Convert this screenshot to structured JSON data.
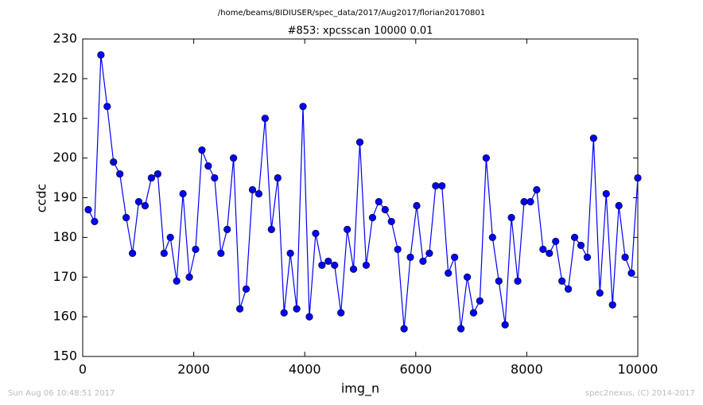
{
  "chart_data": {
    "type": "line",
    "suptitle": "/home/beams/8IDIUSER/spec_data/2017/Aug2017/florian20170801",
    "title": "#853: xpcsscan 10000 0.01",
    "xlabel": "img_n",
    "ylabel": "ccdc",
    "footer_left": "Sun Aug 06 10:48:51 2017",
    "footer_right": "spec2nexus, (C) 2014-2017",
    "xlim": [
      0,
      10000
    ],
    "xticks": [
      0,
      2000,
      4000,
      6000,
      8000,
      10000
    ],
    "ylim": [
      150,
      230
    ],
    "yticks": [
      150,
      160,
      170,
      180,
      190,
      200,
      210,
      220,
      230
    ],
    "x": [
      100,
      214,
      328,
      441,
      555,
      669,
      783,
      897,
      1010,
      1124,
      1238,
      1352,
      1466,
      1579,
      1693,
      1807,
      1921,
      2034,
      2148,
      2262,
      2376,
      2490,
      2603,
      2717,
      2831,
      2945,
      3059,
      3172,
      3286,
      3400,
      3514,
      3628,
      3741,
      3855,
      3969,
      4083,
      4197,
      4310,
      4424,
      4538,
      4652,
      4766,
      4879,
      4993,
      5107,
      5221,
      5334,
      5448,
      5562,
      5676,
      5790,
      5903,
      6017,
      6131,
      6245,
      6359,
      6472,
      6586,
      6700,
      6814,
      6928,
      7041,
      7155,
      7269,
      7383,
      7497,
      7610,
      7724,
      7838,
      7952,
      8066,
      8179,
      8293,
      8407,
      8521,
      8634,
      8748,
      8862,
      8976,
      9090,
      9203,
      9317,
      9431,
      9545,
      9659,
      9772,
      9886,
      10000
    ],
    "series": [
      {
        "color": "#0000ff",
        "values": [
          187,
          184,
          226,
          213,
          199,
          196,
          185,
          176,
          189,
          188,
          195,
          196,
          176,
          180,
          169,
          191,
          170,
          177,
          202,
          198,
          195,
          176,
          182,
          200,
          162,
          167,
          192,
          191,
          210,
          182,
          195,
          161,
          176,
          162,
          213,
          160,
          181,
          173,
          174,
          173,
          161,
          182,
          172,
          204,
          173,
          185,
          189,
          187,
          184,
          177,
          157,
          175,
          188,
          174,
          176,
          193,
          193,
          171,
          175,
          157,
          170,
          161,
          164,
          200,
          180,
          169,
          158,
          185,
          169,
          189,
          189,
          192,
          177,
          176,
          179,
          169,
          167,
          180,
          178,
          175,
          205,
          166,
          191,
          163,
          188,
          175,
          171,
          195
        ]
      }
    ]
  }
}
